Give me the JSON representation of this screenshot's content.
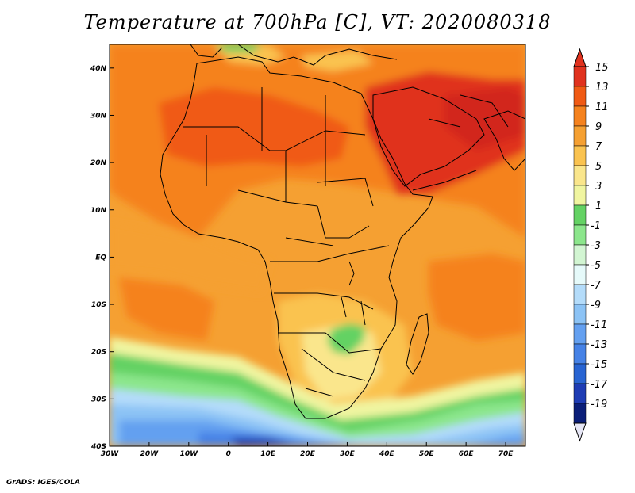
{
  "title": "Temperature at 700hPa [C], VT: 2020080318",
  "credit": "GrADS: IGES/COLA",
  "map": {
    "lon_ticks": [
      "30W",
      "20W",
      "10W",
      "0",
      "10E",
      "20E",
      "30E",
      "40E",
      "50E",
      "60E",
      "70E"
    ],
    "lat_ticks": [
      "40N",
      "30N",
      "20N",
      "10N",
      "EQ",
      "10S",
      "20S",
      "30S",
      "40S"
    ]
  },
  "colorbar": {
    "labels": [
      "15",
      "13",
      "11",
      "9",
      "7",
      "5",
      "3",
      "1",
      "-1",
      "-3",
      "-5",
      "-7",
      "-9",
      "-11",
      "-13",
      "-15",
      "-17",
      "-19"
    ],
    "colors": [
      "#e0321e",
      "#f05a14",
      "#f5821e",
      "#f5a032",
      "#fac350",
      "#fae68c",
      "#f0f5a0",
      "#64d264",
      "#8ce68c",
      "#d2f5d2",
      "#e6fafa",
      "#b4dcfa",
      "#8cc3f5",
      "#64a0f0",
      "#4682e6",
      "#2864d2",
      "#1e3cb4",
      "#0a1e78"
    ],
    "max_color": "#e0321e",
    "min_color": "#e6e6f5"
  }
}
